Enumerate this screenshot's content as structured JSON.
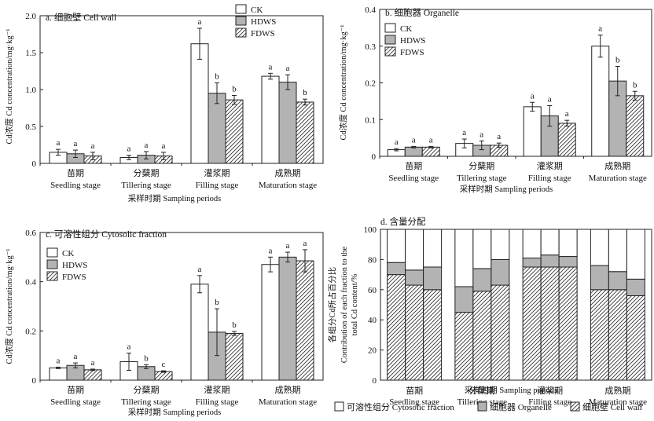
{
  "legend_names": [
    "CK",
    "HDWS",
    "FDWS"
  ],
  "xlabel": "采样时期 Sampling periods",
  "ylabel_conc": "Cd浓度 Cd concentration/mg·kg⁻¹",
  "colors": {
    "CK": "#ffffff",
    "HDWS": "#b3b3b3",
    "FDWS": "hatch"
  },
  "chart_data": [
    {
      "id": "a",
      "type": "bar",
      "title": "a. 细胞壁 Cell wall",
      "categories_cn": [
        "苗期",
        "分蘖期",
        "灌浆期",
        "成熟期"
      ],
      "categories_en": [
        "Seedling stage",
        "Tillering stage",
        "Filling stage",
        "Maturation stage"
      ],
      "ylim": [
        0,
        2.0
      ],
      "yticks": [
        0,
        0.5,
        1.0,
        1.5,
        2.0
      ],
      "tick_labels": [
        "0",
        "0.5",
        "1.0",
        "1.5",
        "2.0"
      ],
      "series": [
        {
          "name": "CK",
          "values": [
            0.15,
            0.08,
            1.62,
            1.18
          ],
          "err": [
            0.04,
            0.03,
            0.21,
            0.04
          ]
        },
        {
          "name": "HDWS",
          "values": [
            0.13,
            0.11,
            0.95,
            1.1
          ],
          "err": [
            0.05,
            0.05,
            0.14,
            0.1
          ]
        },
        {
          "name": "FDWS",
          "values": [
            0.1,
            0.1,
            0.86,
            0.83
          ],
          "err": [
            0.05,
            0.05,
            0.06,
            0.04
          ]
        }
      ],
      "letters": [
        [
          "a",
          "a",
          "a"
        ],
        [
          "a",
          "a",
          "a"
        ],
        [
          "a",
          "b",
          "b"
        ],
        [
          "a",
          "a",
          "b"
        ]
      ]
    },
    {
      "id": "b",
      "type": "bar",
      "title": "b. 细胞器 Organelle",
      "categories_cn": [
        "苗期",
        "分蘖期",
        "灌浆期",
        "成熟期"
      ],
      "categories_en": [
        "Seedling stage",
        "Tillering stage",
        "Filling stage",
        "Maturation stage"
      ],
      "ylim": [
        0,
        0.4
      ],
      "yticks": [
        0,
        0.1,
        0.2,
        0.3,
        0.4
      ],
      "tick_labels": [
        "0",
        "0.1",
        "0.2",
        "0.3",
        "0.4"
      ],
      "series": [
        {
          "name": "CK",
          "values": [
            0.018,
            0.035,
            0.135,
            0.3
          ],
          "err": [
            0.003,
            0.012,
            0.012,
            0.03
          ]
        },
        {
          "name": "HDWS",
          "values": [
            0.025,
            0.03,
            0.11,
            0.205
          ],
          "err": [
            0.002,
            0.012,
            0.028,
            0.04
          ]
        },
        {
          "name": "FDWS",
          "values": [
            0.025,
            0.03,
            0.09,
            0.165
          ],
          "err": [
            0.002,
            0.006,
            0.008,
            0.012
          ]
        }
      ],
      "letters": [
        [
          "a",
          "a",
          "a"
        ],
        [
          "a",
          "a",
          "a"
        ],
        [
          "a",
          "a",
          "a"
        ],
        [
          "a",
          "b",
          "b"
        ]
      ]
    },
    {
      "id": "c",
      "type": "bar",
      "title": "c. 可溶性组分 Cytosolic fraction",
      "categories_cn": [
        "苗期",
        "分蘖期",
        "灌浆期",
        "成熟期"
      ],
      "categories_en": [
        "Seedling stage",
        "Tillering stage",
        "Filling stage",
        "Maturation stage"
      ],
      "ylim": [
        0,
        0.6
      ],
      "yticks": [
        0,
        0.2,
        0.4,
        0.6
      ],
      "tick_labels": [
        "0",
        "0.2",
        "0.4",
        "0.6"
      ],
      "series": [
        {
          "name": "CK",
          "values": [
            0.05,
            0.075,
            0.39,
            0.47
          ],
          "err": [
            0.003,
            0.035,
            0.035,
            0.03
          ]
        },
        {
          "name": "HDWS",
          "values": [
            0.06,
            0.055,
            0.195,
            0.5
          ],
          "err": [
            0.01,
            0.008,
            0.095,
            0.02
          ]
        },
        {
          "name": "FDWS",
          "values": [
            0.042,
            0.035,
            0.19,
            0.485
          ],
          "err": [
            0.003,
            0.003,
            0.008,
            0.045
          ]
        }
      ],
      "letters": [
        [
          "a",
          "a",
          "a"
        ],
        [
          "a",
          "b",
          "c"
        ],
        [
          "a",
          "b",
          "b"
        ],
        [
          "a",
          "a",
          "a"
        ]
      ]
    },
    {
      "id": "d",
      "type": "bar",
      "stacked": true,
      "title": "d. 含量分配",
      "ylabel": [
        "各组分Cd所占百分比",
        "Contribution of each fraction to the",
        "total Cd content/%"
      ],
      "categories_cn": [
        "苗期",
        "分蘖期",
        "灌浆期",
        "成熟期"
      ],
      "categories_en": [
        "Seedling stage",
        "Tillering stage",
        "Filling stage",
        "Maturation stage"
      ],
      "ylim": [
        0,
        100
      ],
      "yticks": [
        0,
        20,
        40,
        60,
        80,
        100
      ],
      "tick_labels": [
        "0",
        "20",
        "40",
        "60",
        "80",
        "100"
      ],
      "stack_series": [
        {
          "name": "细胞壁 Cell wall",
          "values": [
            70,
            63,
            60,
            45,
            59,
            63,
            75,
            75,
            75,
            60,
            60,
            56
          ]
        },
        {
          "name": "细胞器 Organelle",
          "values": [
            8,
            10,
            15,
            17,
            15,
            17,
            6,
            8,
            7,
            16,
            12,
            11
          ]
        },
        {
          "name": "可溶性组分 Cytosolic fraction",
          "values": [
            22,
            27,
            25,
            38,
            26,
            20,
            19,
            17,
            18,
            24,
            28,
            33
          ]
        }
      ],
      "legend": [
        "可溶性组分 Cytosolic fraction",
        "细胞器 Organelle",
        "细胞壁 Cell wall"
      ]
    }
  ]
}
